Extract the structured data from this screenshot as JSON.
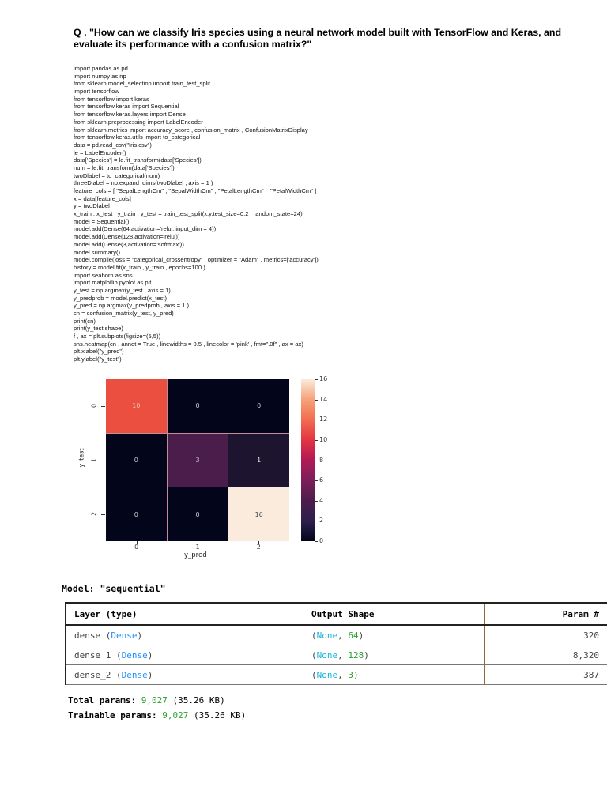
{
  "question": "Q . \"How can we classify Iris species using a neural network model built with TensorFlow and Keras, and evaluate its performance with a confusion matrix?\"",
  "code_lines": [
    "import pandas as pd",
    "import numpy as np",
    "from sklearn.model_selection import train_test_split",
    "import tensorflow",
    "from tensorflow import keras",
    "from tensorflow.keras import Sequential",
    "from tensorflow.keras.layers import Dense",
    "from sklearn.preprocessing import LabelEncoder",
    "from sklearn.metrics import accuracy_score , confusion_matrix , ConfusionMatrixDisplay",
    "from tensorflow.keras.utils import to_categorical",
    "data = pd.read_csv(\"Iris.csv\")",
    "le = LabelEncoder()",
    "data['Species'] = le.fit_transform(data['Species'])",
    "num = le.fit_transform(data['Species'])",
    "twoDlabel = to_categorical(num)",
    "threeDlabel = np.expand_dims(twoDlabel , axis = 1 )",
    "feature_cols = [ \"SepalLengthCm\" , \"SepalWidthCm\" , \"PetalLengthCm\" ,  \"PetalWidthCm\" ]",
    "x = data[feature_cols]",
    "y = twoDlabel",
    "x_train , x_test , y_train , y_test = train_test_split(x,y,test_size=0.2 , random_state=24)",
    "model = Sequential()",
    "model.add(Dense(64,activation='relu', input_dim = 4))",
    "model.add(Dense(128,activation='relu'))",
    "model.add(Dense(3,activation='softmax'))",
    "model.summary()",
    "model.compile(loss = \"categorical_crossentropy\" , optimizer = \"Adam\" , metrics=['accuracy'])",
    "history = model.fit(x_train , y_train , epochs=100 )",
    "import seaborn as sns",
    "import matplotlib.pyplot as plt",
    "y_test = np.argmax(y_test , axis = 1)",
    "y_predprob = model.predict(x_test)",
    "y_pred = np.argmax(y_predprob , axis = 1 )",
    "cn = confusion_matrix(y_test, y_pred)",
    "print(cn)",
    "print(y_test.shape)",
    "f , ax = plt.subplots(figsize=(5,5))",
    "sns.heatmap(cn , annot = True , linewidths = 0.5 , linecolor = 'pink' , fmt=\".0f\" , ax = ax)",
    "plt.xlabel(\"y_pred\")",
    "plt.ylabel(\"y_test\")"
  ],
  "chart_data": {
    "type": "heatmap",
    "title": "",
    "xlabel": "y_pred",
    "ylabel": "y_test",
    "x_categories": [
      "0",
      "1",
      "2"
    ],
    "y_categories": [
      "0",
      "1",
      "2"
    ],
    "values": [
      [
        10,
        0,
        0
      ],
      [
        0,
        3,
        1
      ],
      [
        0,
        0,
        16
      ]
    ],
    "cell_colors": [
      [
        "#eb4f40",
        "#03051a",
        "#03051a"
      ],
      [
        "#03051a",
        "#4a1d4a",
        "#1d1430"
      ],
      [
        "#03051a",
        "#03051a",
        "#faebdd"
      ]
    ],
    "annotation_colors": [
      [
        "#f6c0b4",
        "#cccccc",
        "#cccccc"
      ],
      [
        "#cccccc",
        "#cccccc",
        "#eeeeee"
      ],
      [
        "#cccccc",
        "#cccccc",
        "#444444"
      ]
    ],
    "colorbar": {
      "min": 0,
      "max": 16,
      "ticks": [
        "0",
        "2",
        "4",
        "6",
        "8",
        "10",
        "12",
        "14",
        "16"
      ],
      "colormap": "rocket"
    },
    "linecolor": "pink",
    "legend": "colorbar right"
  },
  "model_summary": {
    "title": "Model: \"sequential\"",
    "headers": {
      "layer": "Layer (type)",
      "shape": "Output Shape",
      "params": "Param #"
    },
    "rows": [
      {
        "name": "dense",
        "type": "Dense",
        "shape_none": "None",
        "shape_units": "64",
        "params": "320"
      },
      {
        "name": "dense_1",
        "type": "Dense",
        "shape_none": "None",
        "shape_units": "128",
        "params": "8,320"
      },
      {
        "name": "dense_2",
        "type": "Dense",
        "shape_none": "None",
        "shape_units": "3",
        "params": "387"
      }
    ],
    "total_label": "Total params:",
    "total_value": "9,027",
    "total_size": "(35.26 KB)",
    "trainable_label": "Trainable params:",
    "trainable_value": "9,027",
    "trainable_size": "(35.26 KB)"
  }
}
